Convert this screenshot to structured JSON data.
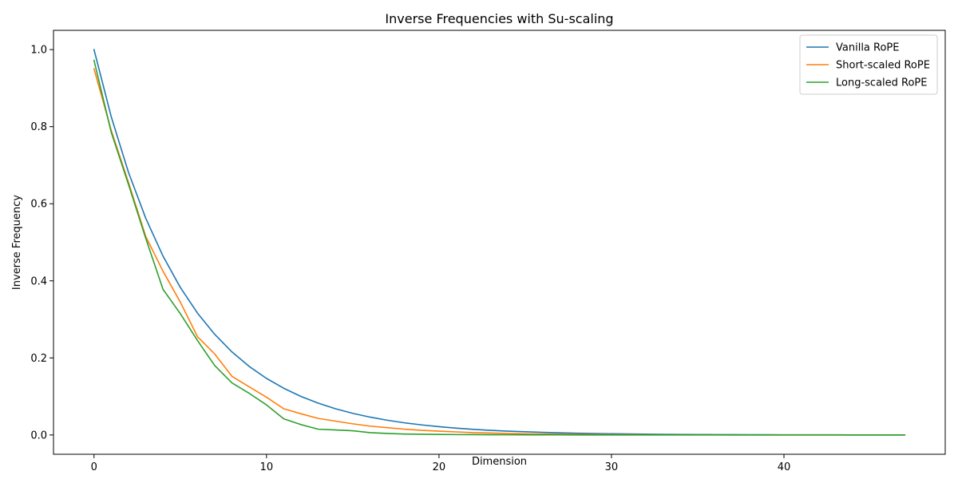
{
  "chart_data": {
    "type": "line",
    "title": "Inverse Frequencies with Su-scaling",
    "xlabel": "Dimension",
    "ylabel": "Inverse Frequency",
    "xlim": [
      -2.35,
      49.35
    ],
    "ylim": [
      -0.05,
      1.05
    ],
    "xticks": [
      0,
      10,
      20,
      30,
      40
    ],
    "xtick_labels": [
      "0",
      "10",
      "20",
      "30",
      "40"
    ],
    "yticks": [
      0.0,
      0.2,
      0.4,
      0.6,
      0.8,
      1.0
    ],
    "ytick_labels": [
      "0.0",
      "0.2",
      "0.4",
      "0.6",
      "0.8",
      "1.0"
    ],
    "grid": false,
    "legend_position": "top-right",
    "x": [
      0,
      1,
      2,
      3,
      4,
      5,
      6,
      7,
      8,
      9,
      10,
      11,
      12,
      13,
      14,
      15,
      16,
      17,
      18,
      19,
      20,
      21,
      22,
      23,
      24,
      25,
      26,
      27,
      28,
      29,
      30,
      31,
      32,
      33,
      34,
      35,
      36,
      37,
      38,
      39,
      40,
      41,
      42,
      43,
      44,
      45,
      46,
      47
    ],
    "series": [
      {
        "name": "Vanilla RoPE",
        "color": "#1f77b4",
        "values": [
          1.0,
          0.8254,
          0.6813,
          0.5623,
          0.4642,
          0.3831,
          0.3162,
          0.261,
          0.2154,
          0.1778,
          0.1468,
          0.1212,
          0.1,
          0.0825,
          0.0681,
          0.0562,
          0.0464,
          0.0383,
          0.0316,
          0.0261,
          0.0215,
          0.0178,
          0.0147,
          0.0121,
          0.01,
          0.0083,
          0.0068,
          0.0056,
          0.0046,
          0.0038,
          0.0032,
          0.0026,
          0.0022,
          0.0018,
          0.0015,
          0.0012,
          0.001,
          0.0008,
          0.0007,
          0.0006,
          0.0005,
          0.0004,
          0.0003,
          0.0003,
          0.0002,
          0.0002,
          0.0002,
          0.0001
        ]
      },
      {
        "name": "Short-scaled RoPE",
        "color": "#ff7f0e",
        "values": [
          0.95,
          0.79,
          0.655,
          0.515,
          0.425,
          0.345,
          0.255,
          0.21,
          0.152,
          0.125,
          0.098,
          0.068,
          0.055,
          0.043,
          0.036,
          0.029,
          0.023,
          0.019,
          0.015,
          0.012,
          0.01,
          0.008,
          0.006,
          0.005,
          0.004,
          0.003,
          0.0025,
          0.002,
          0.0016,
          0.0013,
          0.001,
          0.0008,
          0.0006,
          0.0005,
          0.0004,
          0.0003,
          0.0003,
          0.0002,
          0.0002,
          0.0001,
          0.0001,
          0.0001,
          0.0001,
          0.0001,
          0.0001,
          0.0001,
          0.0001,
          0.0001
        ]
      },
      {
        "name": "Long-scaled RoPE",
        "color": "#2ca02c",
        "values": [
          0.972,
          0.785,
          0.65,
          0.51,
          0.378,
          0.315,
          0.245,
          0.18,
          0.135,
          0.108,
          0.078,
          0.042,
          0.027,
          0.015,
          0.013,
          0.011,
          0.006,
          0.004,
          0.0025,
          0.002,
          0.0015,
          0.001,
          0.0008,
          0.0006,
          0.0005,
          0.0004,
          0.0003,
          0.0003,
          0.0002,
          0.0002,
          0.0001,
          0.0001,
          0.0001,
          0.0001,
          0.0001,
          0.0001,
          0.0001,
          0.0001,
          0.0001,
          0.0001,
          0.0001,
          0.0001,
          0.0001,
          0.0001,
          0.0001,
          0.0001,
          0.0001,
          0.0001
        ]
      }
    ]
  }
}
